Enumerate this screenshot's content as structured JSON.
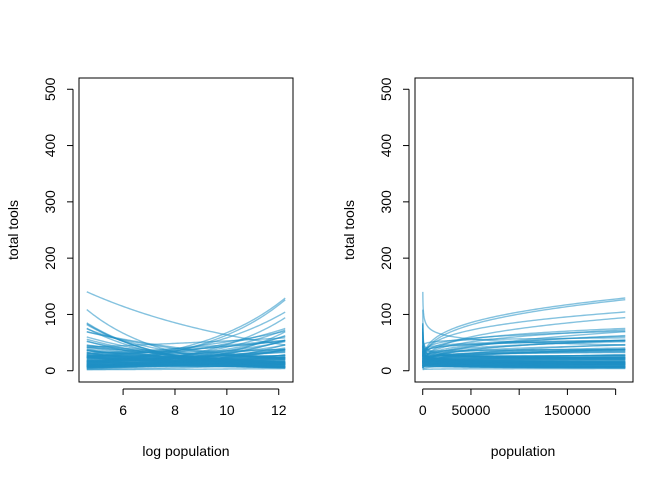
{
  "chart_data": [
    {
      "type": "line",
      "xlabel": "log population",
      "ylabel": "total tools",
      "xscale": "log",
      "x_range": [
        4.6,
        12.25
      ],
      "xlim": [
        4.3,
        12.55
      ],
      "ylim": [
        -20,
        520
      ],
      "x_ticks": [
        6,
        8,
        10,
        12
      ],
      "y_ticks": [
        0,
        100,
        200,
        300,
        400,
        500
      ],
      "line_color": "#1f8fc5",
      "line_opacity": 0.55,
      "series_count": 100,
      "grid": false
    },
    {
      "type": "line",
      "xlabel": "population",
      "ylabel": "total tools",
      "xscale": "linear",
      "x_range": [
        100,
        210000
      ],
      "xlim": [
        -8000,
        218000
      ],
      "ylim": [
        -20,
        520
      ],
      "x_ticks": [
        0,
        50000,
        100000,
        150000,
        200000
      ],
      "x_tick_labels": [
        "0",
        "50000",
        "",
        "150000",
        ""
      ],
      "y_ticks": [
        0,
        100,
        200,
        300,
        400,
        500
      ],
      "line_color": "#1f8fc5",
      "line_opacity": 0.55,
      "series_count": 100,
      "grid": false
    }
  ]
}
